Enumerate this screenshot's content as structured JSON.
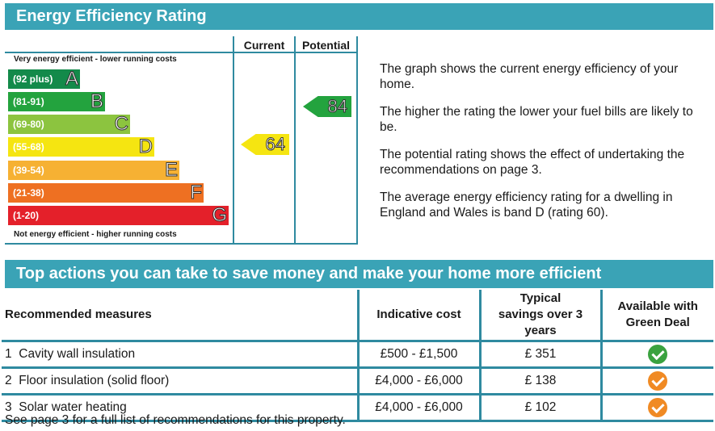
{
  "header": {
    "title": "Energy Efficiency Rating"
  },
  "graph": {
    "current_label": "Current",
    "potential_label": "Potential",
    "top_caption": "Very energy efficient - lower running costs",
    "bottom_caption": "Not energy efficient - higher running costs",
    "bands": [
      {
        "range": "(92 plus)",
        "letter": "A",
        "color": "#138a4a"
      },
      {
        "range": "(81-91)",
        "letter": "B",
        "color": "#23a33e"
      },
      {
        "range": "(69-80)",
        "letter": "C",
        "color": "#8cc43f"
      },
      {
        "range": "(55-68)",
        "letter": "D",
        "color": "#f5e511"
      },
      {
        "range": "(39-54)",
        "letter": "E",
        "color": "#f6b133"
      },
      {
        "range": "(21-38)",
        "letter": "F",
        "color": "#ee7022"
      },
      {
        "range": "(1-20)",
        "letter": "G",
        "color": "#e4202a"
      }
    ],
    "current": {
      "value": "64",
      "band": "D",
      "color": "#f5e511"
    },
    "potential": {
      "value": "84",
      "band": "B",
      "color": "#23a33e"
    }
  },
  "description": [
    "The graph shows the current energy efficiency of your home.",
    "The higher the rating the lower your fuel bills are likely to be.",
    "The potential rating shows the effect of undertaking the recommendations on page 3.",
    "The average energy efficiency rating for a dwelling in England and Wales is band D (rating 60)."
  ],
  "actions": {
    "title": "Top actions you can take to save money and make your home more efficient",
    "headers": {
      "measure": "Recommended measures",
      "cost": "Indicative cost",
      "savings": "Typical savings over 3 years",
      "green_deal": "Available with Green Deal"
    },
    "rows": [
      {
        "num": "1",
        "measure": "Cavity wall insulation",
        "cost": "£500 - £1,500",
        "savings": "£ 351",
        "icon": "check-circle-icon",
        "color": "#3aa23f"
      },
      {
        "num": "2",
        "measure": "Floor insulation (solid floor)",
        "cost": "£4,000 - £6,000",
        "savings": "£ 138",
        "icon": "check-circle-icon",
        "color": "#f08a24"
      },
      {
        "num": "3",
        "measure": "Solar water heating",
        "cost": "£4,000 - £6,000",
        "savings": "£ 102",
        "icon": "check-circle-icon",
        "color": "#f08a24"
      }
    ]
  },
  "footnote": "See page 3 for a full list of recommendations for this property."
}
